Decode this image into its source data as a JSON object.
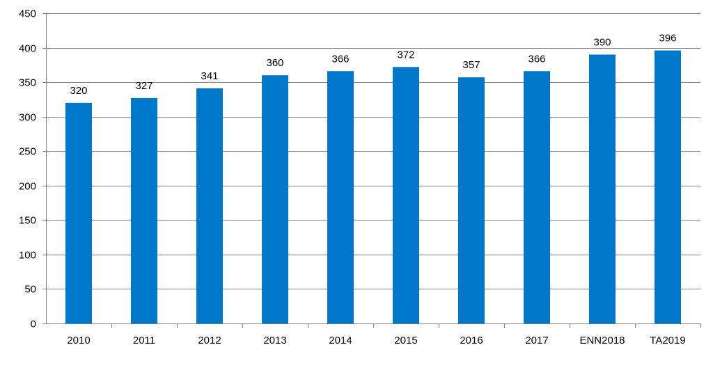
{
  "chart_data": {
    "type": "bar",
    "categories": [
      "2010",
      "2011",
      "2012",
      "2013",
      "2014",
      "2015",
      "2016",
      "2017",
      "ENN2018",
      "TA2019"
    ],
    "values": [
      320,
      327,
      341,
      360,
      366,
      372,
      357,
      366,
      390,
      396
    ],
    "data_labels": [
      "320",
      "327",
      "341",
      "360",
      "366",
      "372",
      "357",
      "366",
      "390",
      "396"
    ],
    "ylim": [
      0,
      450
    ],
    "yticks": [
      0,
      50,
      100,
      150,
      200,
      250,
      300,
      350,
      400,
      450
    ],
    "ytick_labels": [
      "0",
      "50",
      "100",
      "150",
      "200",
      "250",
      "300",
      "350",
      "400",
      "450"
    ],
    "grid": true,
    "legend": "none",
    "bar_color": "#0077C8",
    "grid_color": "#7F7F7F",
    "axis_color": "#7F7F7F"
  }
}
